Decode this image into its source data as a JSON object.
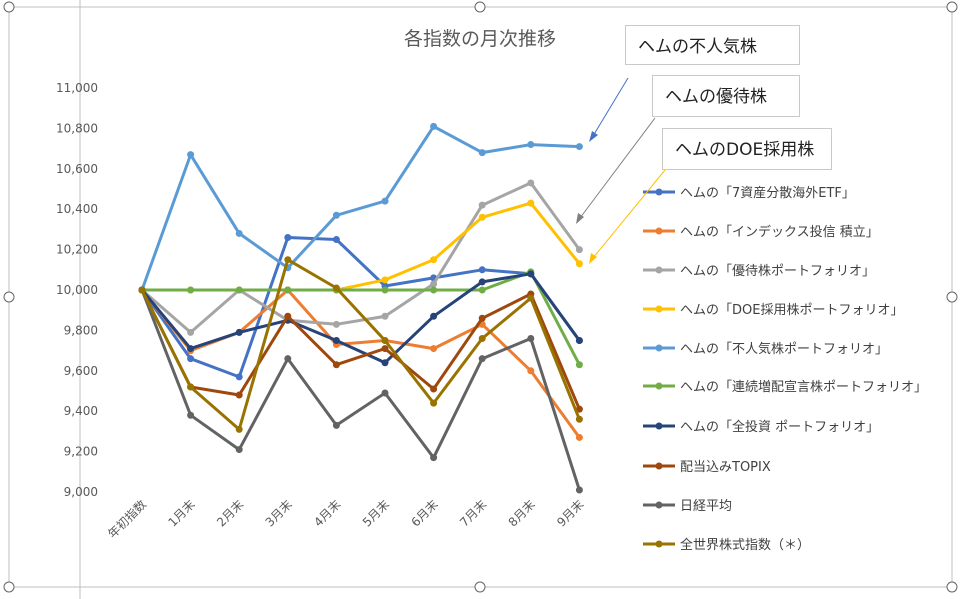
{
  "chart_data": {
    "type": "line",
    "title": "各指数の月次推移",
    "categories": [
      "年初指数",
      "1月末",
      "2月末",
      "3月末",
      "4月末",
      "5月末",
      "6月末",
      "7月末",
      "8月末",
      "9月末"
    ],
    "ylim": [
      9000,
      11000
    ],
    "yticks": [
      "11,000",
      "10,800",
      "10,600",
      "10,400",
      "10,200",
      "10,000",
      "9,800",
      "9,600",
      "9,400",
      "9,200",
      "9,000"
    ],
    "grid": false,
    "legend": "right",
    "series": [
      {
        "name": "ヘムの「7資産分散海外ETF」",
        "color": "#4472C4",
        "values": [
          10000,
          9660,
          9570,
          10260,
          10250,
          10020,
          10060,
          10100,
          10080,
          9750
        ]
      },
      {
        "name": "ヘムの「インデックス投信 積立」",
        "color": "#ED7D31",
        "values": [
          10000,
          9700,
          9790,
          10000,
          9730,
          9750,
          9710,
          9830,
          9600,
          9270
        ]
      },
      {
        "name": "ヘムの「優待株ポートフォリオ」",
        "color": "#A5A5A5",
        "values": [
          10000,
          9790,
          10000,
          9850,
          9830,
          9870,
          10030,
          10420,
          10530,
          10200
        ]
      },
      {
        "name": "ヘムの「DOE採用株ポートフォリオ」",
        "color": "#FFC000",
        "values": [
          10000,
          10000,
          10000,
          10000,
          10000,
          10050,
          10150,
          10360,
          10430,
          10130
        ]
      },
      {
        "name": "ヘムの「不人気株ポートフォリオ」",
        "color": "#5B9BD5",
        "values": [
          10000,
          10670,
          10280,
          10110,
          10370,
          10440,
          10810,
          10680,
          10720,
          10710
        ]
      },
      {
        "name": "ヘムの「連続増配宣言株ポートフォリオ」",
        "color": "#70AD47",
        "values": [
          10000,
          10000,
          10000,
          10000,
          10000,
          10000,
          10000,
          10000,
          10090,
          9630
        ]
      },
      {
        "name": "ヘムの「全投資 ポートフォリオ」",
        "color": "#264478",
        "values": [
          10000,
          9710,
          9790,
          9850,
          9750,
          9640,
          9870,
          10040,
          10080,
          9750
        ]
      },
      {
        "name": "配当込みTOPIX",
        "color": "#9E480E",
        "values": [
          10000,
          9520,
          9480,
          9870,
          9630,
          9710,
          9510,
          9860,
          9980,
          9410
        ]
      },
      {
        "name": "日経平均",
        "color": "#636363",
        "values": [
          10000,
          9380,
          9210,
          9660,
          9330,
          9490,
          9170,
          9660,
          9760,
          9010
        ]
      },
      {
        "name": "全世界株式指数（＊）",
        "color": "#997300",
        "values": [
          10000,
          9520,
          9310,
          10150,
          10010,
          9750,
          9440,
          9760,
          9960,
          9360
        ]
      }
    ]
  },
  "callouts": {
    "unpopular": "ヘムの不人気株",
    "yutai": "ヘムの優待株",
    "doe": "ヘムのDOE採用株"
  }
}
